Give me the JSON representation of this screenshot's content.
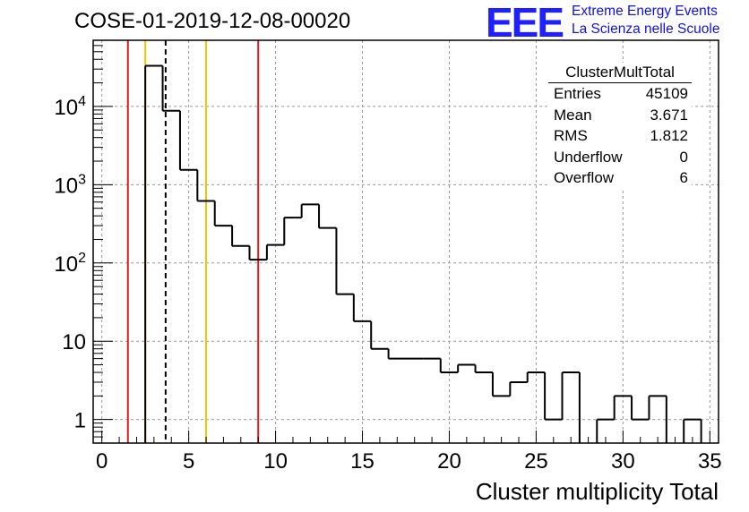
{
  "chart_data": {
    "type": "histogram",
    "title": "COSE-01-2019-12-08-00020",
    "xlabel": "Cluster multiplicity Total",
    "ylabel": "",
    "xlim": [
      -0.5,
      35.5
    ],
    "ylim": [
      0.5,
      70000
    ],
    "yscale": "log",
    "grid": true,
    "x_ticks": [
      "0",
      "5",
      "10",
      "15",
      "20",
      "25",
      "30",
      "35"
    ],
    "y_ticks": [
      "1",
      "10",
      "10^2",
      "10^3",
      "10^4"
    ],
    "bins": [
      {
        "low": 1.5,
        "high": 2.5,
        "count": 0
      },
      {
        "low": 2.5,
        "high": 3.5,
        "count": 33000
      },
      {
        "low": 3.5,
        "high": 4.5,
        "count": 8800
      },
      {
        "low": 4.5,
        "high": 5.5,
        "count": 1550
      },
      {
        "low": 5.5,
        "high": 6.5,
        "count": 620
      },
      {
        "low": 6.5,
        "high": 7.5,
        "count": 300
      },
      {
        "low": 7.5,
        "high": 8.5,
        "count": 165
      },
      {
        "low": 8.5,
        "high": 9.5,
        "count": 110
      },
      {
        "low": 9.5,
        "high": 10.5,
        "count": 170
      },
      {
        "low": 10.5,
        "high": 11.5,
        "count": 380
      },
      {
        "low": 11.5,
        "high": 12.5,
        "count": 560
      },
      {
        "low": 12.5,
        "high": 13.5,
        "count": 280
      },
      {
        "low": 13.5,
        "high": 14.5,
        "count": 40
      },
      {
        "low": 14.5,
        "high": 15.5,
        "count": 18
      },
      {
        "low": 15.5,
        "high": 16.5,
        "count": 8
      },
      {
        "low": 16.5,
        "high": 17.5,
        "count": 6
      },
      {
        "low": 17.5,
        "high": 18.5,
        "count": 6
      },
      {
        "low": 18.5,
        "high": 19.5,
        "count": 6
      },
      {
        "low": 19.5,
        "high": 20.5,
        "count": 4
      },
      {
        "low": 20.5,
        "high": 21.5,
        "count": 5
      },
      {
        "low": 21.5,
        "high": 22.5,
        "count": 4
      },
      {
        "low": 22.5,
        "high": 23.5,
        "count": 2
      },
      {
        "low": 23.5,
        "high": 24.5,
        "count": 3
      },
      {
        "low": 24.5,
        "high": 25.5,
        "count": 4
      },
      {
        "low": 25.5,
        "high": 26.5,
        "count": 1
      },
      {
        "low": 26.5,
        "high": 27.5,
        "count": 4
      },
      {
        "low": 27.5,
        "high": 28.5,
        "count": 0
      },
      {
        "low": 28.5,
        "high": 29.5,
        "count": 1
      },
      {
        "low": 29.5,
        "high": 30.5,
        "count": 2
      },
      {
        "low": 30.5,
        "high": 31.5,
        "count": 1
      },
      {
        "low": 31.5,
        "high": 32.5,
        "count": 2
      },
      {
        "low": 32.5,
        "high": 33.5,
        "count": 0
      },
      {
        "low": 33.5,
        "high": 34.5,
        "count": 1
      },
      {
        "low": 34.5,
        "high": 35.5,
        "count": 0
      }
    ],
    "vertical_lines": [
      {
        "x": 1.5,
        "color": "#e31a1c",
        "style": "solid"
      },
      {
        "x": 2.5,
        "color": "#f5c400",
        "style": "solid"
      },
      {
        "x": 3.671,
        "color": "#000000",
        "style": "dashed"
      },
      {
        "x": 6.0,
        "color": "#f5c400",
        "style": "solid"
      },
      {
        "x": 9.0,
        "color": "#e31a1c",
        "style": "solid"
      }
    ]
  },
  "stats_box": {
    "name": "ClusterMultTotal",
    "rows": [
      {
        "label": "Entries",
        "value": "45109"
      },
      {
        "label": "Mean",
        "value": "3.671"
      },
      {
        "label": "RMS",
        "value": "1.812"
      },
      {
        "label": "Underflow",
        "value": "0"
      },
      {
        "label": "Overflow",
        "value": "6"
      }
    ]
  },
  "logo": {
    "mark": "EEE",
    "line1": "Extreme Energy Events",
    "line2": "La Scienza nelle Scuole"
  },
  "colors": {
    "logo": "#2020ff",
    "grid": "#999999"
  }
}
